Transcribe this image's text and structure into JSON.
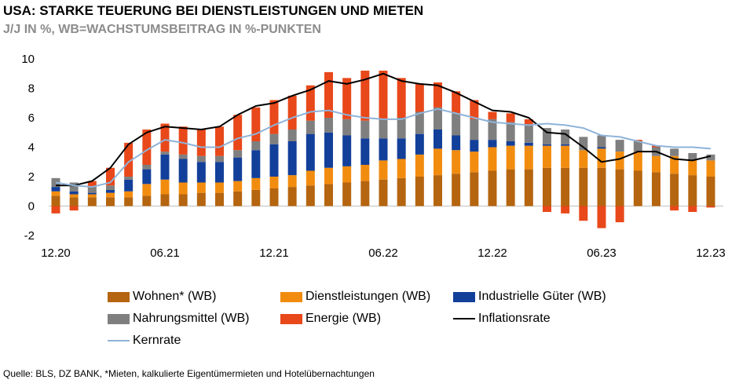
{
  "header": {
    "title": "USA: STARKE TEUERUNG BEI DIENSTLEISTUNGEN UND MIETEN",
    "subtitle": "J/J IN %, WB=WACHSTUMSBEITRAG IN %-PUNKTEN"
  },
  "source": "Quelle: BLS, DZ BANK, *Mieten, kalkulierte Eigentümermieten und Hotelübernachtungen",
  "chart_data": {
    "type": "bar",
    "stacked": true,
    "ylim": [
      -2,
      10
    ],
    "yticks": [
      "-2",
      "0",
      "2",
      "4",
      "6",
      "8",
      "10"
    ],
    "ytick_values": [
      -2,
      0,
      2,
      4,
      6,
      8,
      10
    ],
    "xtick_labels": [
      "12.20",
      "06.21",
      "12.21",
      "06.22",
      "12.22",
      "06.23",
      "12.23"
    ],
    "xtick_indices": [
      0,
      6,
      12,
      18,
      24,
      30,
      36
    ],
    "categories": [
      "12.20",
      "01.21",
      "02.21",
      "03.21",
      "04.21",
      "05.21",
      "06.21",
      "07.21",
      "08.21",
      "09.21",
      "10.21",
      "11.21",
      "12.21",
      "01.22",
      "02.22",
      "03.22",
      "04.22",
      "05.22",
      "06.22",
      "07.22",
      "08.22",
      "09.22",
      "10.22",
      "11.22",
      "12.22",
      "01.23",
      "02.23",
      "03.23",
      "04.23",
      "05.23",
      "06.23",
      "07.23",
      "08.23",
      "09.23",
      "10.23",
      "11.23",
      "12.23"
    ],
    "series": [
      {
        "name": "Wohnen* (WB)",
        "kind": "bar",
        "color": "#b5650f",
        "values": [
          0.7,
          0.6,
          0.6,
          0.6,
          0.6,
          0.7,
          0.8,
          0.8,
          0.9,
          0.9,
          1.0,
          1.1,
          1.2,
          1.3,
          1.4,
          1.5,
          1.6,
          1.7,
          1.8,
          1.9,
          2.0,
          2.1,
          2.2,
          2.3,
          2.4,
          2.5,
          2.5,
          2.6,
          2.6,
          2.6,
          2.6,
          2.5,
          2.4,
          2.3,
          2.2,
          2.1,
          2.0
        ]
      },
      {
        "name": "Dienstleistungen (WB)",
        "kind": "bar",
        "color": "#f28c0f",
        "values": [
          0.3,
          0.2,
          0.2,
          0.3,
          0.4,
          0.8,
          1.0,
          0.8,
          0.7,
          0.7,
          0.7,
          0.8,
          0.8,
          0.8,
          1.0,
          1.1,
          1.1,
          1.1,
          1.3,
          1.3,
          1.5,
          1.8,
          1.6,
          1.4,
          1.6,
          1.6,
          1.6,
          1.5,
          1.5,
          1.2,
          1.3,
          1.2,
          1.3,
          1.1,
          1.2,
          1.0,
          1.1
        ]
      },
      {
        "name": "Industrielle Güter (WB)",
        "kind": "bar",
        "color": "#123f99",
        "values": [
          0.3,
          0.2,
          0.1,
          0.2,
          0.8,
          1.0,
          1.7,
          1.6,
          1.4,
          1.4,
          1.6,
          1.9,
          2.2,
          2.3,
          2.5,
          2.4,
          2.1,
          1.8,
          1.5,
          1.4,
          1.4,
          1.3,
          1.0,
          0.8,
          0.5,
          0.3,
          0.2,
          0.1,
          0.1,
          0.0,
          0.1,
          0.0,
          0.0,
          0.0,
          0.0,
          0.0,
          0.0
        ]
      },
      {
        "name": "Nahrungsmittel (WB)",
        "kind": "bar",
        "color": "#7f7f7f",
        "values": [
          0.6,
          0.6,
          0.4,
          0.3,
          0.2,
          0.3,
          0.2,
          0.3,
          0.4,
          0.4,
          0.5,
          0.6,
          0.7,
          0.8,
          0.9,
          1.0,
          1.1,
          1.2,
          1.3,
          1.4,
          1.5,
          1.5,
          1.5,
          1.4,
          1.4,
          1.3,
          1.2,
          1.1,
          1.0,
          0.9,
          0.8,
          0.8,
          0.7,
          0.6,
          0.5,
          0.5,
          0.4
        ]
      },
      {
        "name": "Energie (WB)",
        "kind": "bar",
        "color": "#e8481a",
        "values": [
          -0.5,
          -0.3,
          0.4,
          1.2,
          2.3,
          2.4,
          1.9,
          1.9,
          1.8,
          2.0,
          2.4,
          2.3,
          2.3,
          2.3,
          2.4,
          3.1,
          2.8,
          3.4,
          3.3,
          2.7,
          1.9,
          1.7,
          1.5,
          1.3,
          0.5,
          0.6,
          0.4,
          -0.4,
          -0.5,
          -1.0,
          -1.5,
          -1.1,
          0.1,
          0.1,
          -0.3,
          -0.4,
          -0.1
        ]
      },
      {
        "name": "Inflationsrate",
        "kind": "line",
        "color": "#000000",
        "values": [
          1.4,
          1.4,
          1.7,
          2.6,
          4.2,
          5.0,
          5.4,
          5.3,
          5.2,
          5.4,
          6.2,
          6.8,
          7.0,
          7.5,
          7.9,
          8.5,
          8.3,
          8.6,
          9.0,
          8.5,
          8.3,
          8.2,
          7.7,
          7.1,
          6.5,
          6.4,
          6.0,
          5.0,
          4.9,
          4.0,
          3.0,
          3.2,
          3.7,
          3.7,
          3.2,
          3.1,
          3.4
        ]
      },
      {
        "name": "Kernrate",
        "kind": "line",
        "color": "#8fb3d9",
        "values": [
          1.6,
          1.4,
          1.3,
          1.6,
          3.0,
          3.8,
          4.5,
          4.3,
          4.0,
          4.0,
          4.6,
          4.9,
          5.5,
          6.0,
          6.4,
          6.5,
          6.2,
          6.0,
          5.9,
          5.9,
          6.3,
          6.6,
          6.3,
          6.0,
          5.7,
          5.6,
          5.5,
          5.6,
          5.5,
          5.3,
          4.8,
          4.7,
          4.4,
          4.1,
          4.0,
          4.0,
          3.9
        ]
      }
    ]
  }
}
